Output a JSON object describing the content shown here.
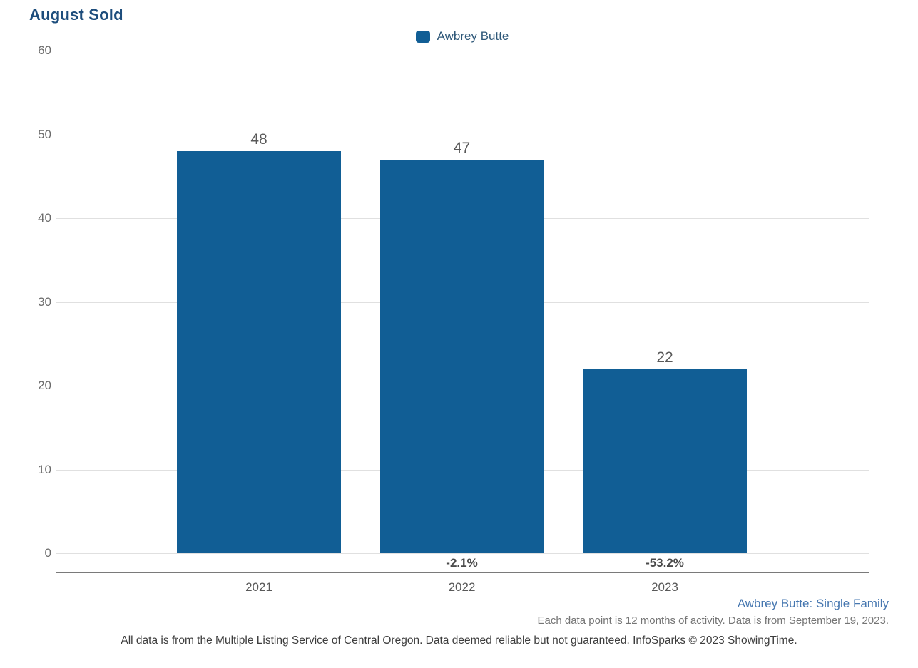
{
  "page": {
    "title": "August Sold"
  },
  "legend": {
    "label": "Awbrey Butte",
    "swatch_color": "#115e95"
  },
  "footer": {
    "series_note": "Awbrey Butte: Single Family",
    "data_note": "Each data point is 12 months of activity. Data is from September 19, 2023.",
    "disclaimer": "All data is from the Multiple Listing Service of Central Oregon. Data deemed reliable but not guaranteed. InfoSparks © 2023 ShowingTime."
  },
  "chart_data": {
    "type": "bar",
    "title": "August Sold",
    "categories": [
      "2021",
      "2022",
      "2023"
    ],
    "series": [
      {
        "name": "Awbrey Butte",
        "values": [
          48,
          47,
          22
        ]
      }
    ],
    "bar_value_labels": [
      "48",
      "47",
      "22"
    ],
    "pct_change_labels": [
      "",
      "-2.1%",
      "-53.2%"
    ],
    "ylim": [
      0,
      60
    ],
    "yticks": [
      0,
      10,
      20,
      30,
      40,
      50,
      60
    ],
    "grid": "horizontal",
    "legend_position": "top-center",
    "bar_color": "#115e95"
  }
}
